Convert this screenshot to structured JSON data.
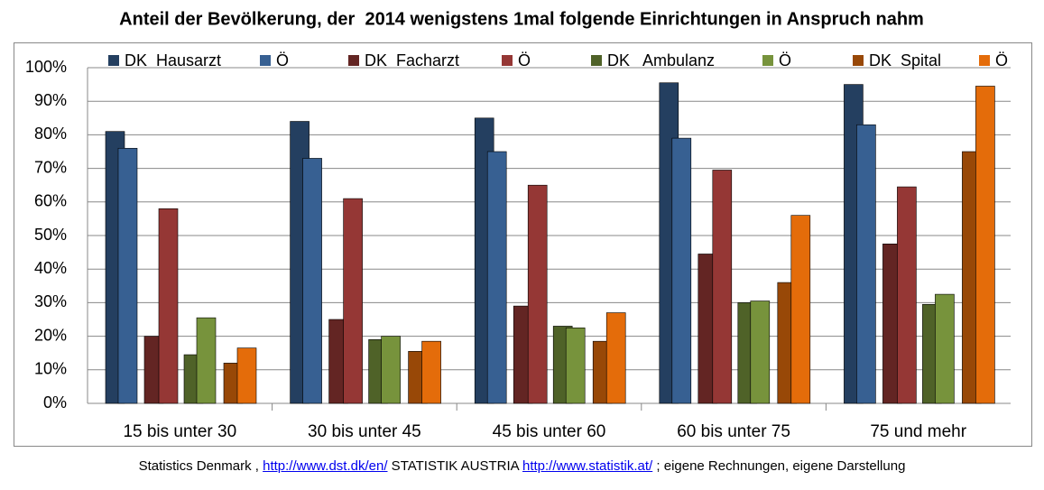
{
  "chart_data": {
    "type": "bar",
    "title": "Anteil der Bevölkerung, der  2014 wenigstens 1mal folgende Einrichtungen in Anspruch nahm",
    "categories": [
      "15 bis unter 30",
      "30 bis unter 45",
      "45 bis unter 60",
      "60 bis unter 75",
      "75 und mehr"
    ],
    "series": [
      {
        "name": "DK  Hausarzt",
        "color": "#243f60",
        "values": [
          81,
          84,
          85,
          95.5,
          95
        ]
      },
      {
        "name": "Ö",
        "color": "#376092",
        "values": [
          76,
          73,
          75,
          79,
          83
        ]
      },
      {
        "name": "DK  Facharzt",
        "color": "#632523",
        "values": [
          20,
          25,
          29,
          44.5,
          47.5
        ]
      },
      {
        "name": "Ö",
        "color": "#953735",
        "values": [
          58,
          61,
          65,
          69.5,
          64.5
        ]
      },
      {
        "name": "DK   Ambulanz",
        "color": "#4f6228",
        "values": [
          14.5,
          19,
          23,
          30,
          29.5
        ]
      },
      {
        "name": "Ö",
        "color": "#77933c",
        "values": [
          25.5,
          20,
          22.5,
          30.5,
          32.5
        ]
      },
      {
        "name": "DK  Spital",
        "color": "#984807",
        "values": [
          12,
          15.5,
          18.5,
          36,
          75
        ]
      },
      {
        "name": "Ö",
        "color": "#e46c0a",
        "values": [
          16.5,
          18.5,
          27,
          56,
          94.5
        ]
      }
    ],
    "ylim": [
      0,
      100
    ],
    "yticks": [
      {
        "value": 0,
        "label": "0%"
      },
      {
        "value": 10,
        "label": "10%"
      },
      {
        "value": 20,
        "label": "20%"
      },
      {
        "value": 30,
        "label": "30%"
      },
      {
        "value": 40,
        "label": "40%"
      },
      {
        "value": 50,
        "label": "50%"
      },
      {
        "value": 60,
        "label": "60%"
      },
      {
        "value": 70,
        "label": "70%"
      },
      {
        "value": 80,
        "label": "80%"
      },
      {
        "value": 90,
        "label": "90%"
      },
      {
        "value": 100,
        "label": "100%"
      }
    ],
    "grid": true,
    "legend": "top"
  },
  "footer": {
    "parts": [
      "Statistics Denmark , ",
      "http://www.dst.dk/en/",
      " STATISTIK AUSTRIA ",
      "http://www.statistik.at/",
      " ; eigene Rechnungen, eigene Darstellung"
    ]
  }
}
